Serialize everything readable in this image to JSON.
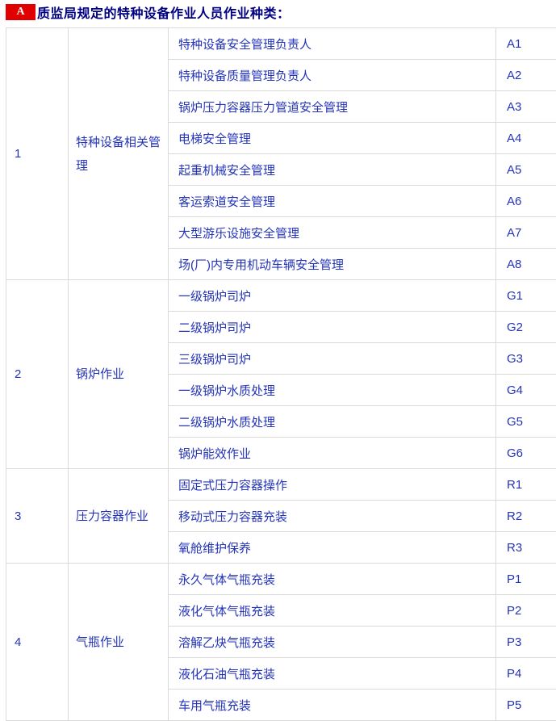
{
  "header": {
    "badge": "A",
    "title": "质监局规定的特种设备作业人员作业种类："
  },
  "colors": {
    "badge_bg": "#e00000",
    "badge_text": "#ffffff",
    "title_text": "#000080",
    "cell_text": "#2434b8",
    "border": "#d9d9d9"
  },
  "table": {
    "groups": [
      {
        "no": "1",
        "category": "特种设备相关管理",
        "rows": [
          {
            "name": "特种设备安全管理负责人",
            "code": "A1"
          },
          {
            "name": "特种设备质量管理负责人",
            "code": "A2"
          },
          {
            "name": "锅炉压力容器压力管道安全管理",
            "code": "A3"
          },
          {
            "name": "电梯安全管理",
            "code": "A4"
          },
          {
            "name": "起重机械安全管理",
            "code": "A5"
          },
          {
            "name": "客运索道安全管理",
            "code": "A6"
          },
          {
            "name": "大型游乐设施安全管理",
            "code": "A7"
          },
          {
            "name": "场(厂)内专用机动车辆安全管理",
            "code": "A8"
          }
        ]
      },
      {
        "no": "2",
        "category": "锅炉作业",
        "rows": [
          {
            "name": "一级锅炉司炉",
            "code": "G1"
          },
          {
            "name": "二级锅炉司炉",
            "code": "G2"
          },
          {
            "name": "三级锅炉司炉",
            "code": "G3"
          },
          {
            "name": "一级锅炉水质处理",
            "code": "G4"
          },
          {
            "name": "二级锅炉水质处理",
            "code": "G5"
          },
          {
            "name": "锅炉能效作业",
            "code": "G6"
          }
        ]
      },
      {
        "no": "3",
        "category": "压力容器作业",
        "rows": [
          {
            "name": "固定式压力容器操作",
            "code": "R1"
          },
          {
            "name": "移动式压力容器充装",
            "code": "R2"
          },
          {
            "name": "氧舱维护保养",
            "code": "R3"
          }
        ]
      },
      {
        "no": "4",
        "category": "气瓶作业",
        "rows": [
          {
            "name": "永久气体气瓶充装",
            "code": "P1"
          },
          {
            "name": "液化气体气瓶充装",
            "code": "P2"
          },
          {
            "name": "溶解乙炔气瓶充装",
            "code": "P3"
          },
          {
            "name": "液化石油气瓶充装",
            "code": "P4"
          },
          {
            "name": "车用气瓶充装",
            "code": "P5"
          }
        ]
      }
    ]
  }
}
